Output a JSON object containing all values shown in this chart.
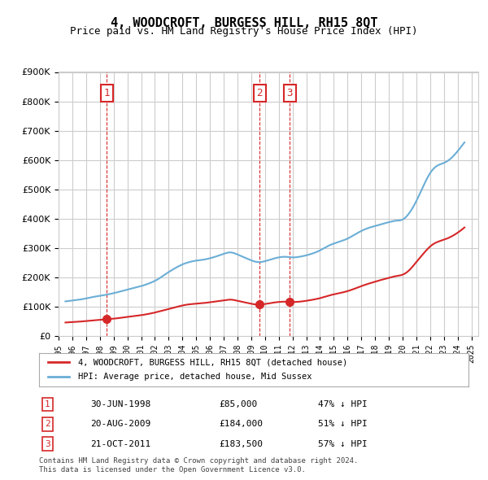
{
  "title": "4, WOODCROFT, BURGESS HILL, RH15 8QT",
  "subtitle": "Price paid vs. HM Land Registry's House Price Index (HPI)",
  "legend_line1": "4, WOODCROFT, BURGESS HILL, RH15 8QT (detached house)",
  "legend_line2": "HPI: Average price, detached house, Mid Sussex",
  "footer1": "Contains HM Land Registry data © Crown copyright and database right 2024.",
  "footer2": "This data is licensed under the Open Government Licence v3.0.",
  "transactions": [
    {
      "num": 1,
      "date": "30-JUN-1998",
      "price": 85000,
      "pct": "47%",
      "x": 1998.5
    },
    {
      "num": 2,
      "date": "20-AUG-2009",
      "price": 184000,
      "pct": "51%",
      "x": 2009.6
    },
    {
      "num": 3,
      "date": "21-OCT-2011",
      "price": 183500,
      "pct": "57%",
      "x": 2011.8
    }
  ],
  "hpi_color": "#6baed6",
  "price_color": "#d62728",
  "vline_color": "#d62728",
  "dot_color": "#d62728",
  "grid_color": "#cccccc",
  "background_color": "#ffffff",
  "ylim": [
    0,
    900000
  ],
  "xlim": [
    1995,
    2025.5
  ],
  "ytick_step": 100000,
  "hpi_data": {
    "years": [
      1995.5,
      1996.0,
      1996.5,
      1997.0,
      1997.5,
      1998.0,
      1998.5,
      1999.0,
      1999.5,
      2000.0,
      2000.5,
      2001.0,
      2001.5,
      2002.0,
      2002.5,
      2003.0,
      2003.5,
      2004.0,
      2004.5,
      2005.0,
      2005.5,
      2006.0,
      2006.5,
      2007.0,
      2007.5,
      2008.0,
      2008.5,
      2009.0,
      2009.5,
      2010.0,
      2010.5,
      2011.0,
      2011.5,
      2012.0,
      2012.5,
      2013.0,
      2013.5,
      2014.0,
      2014.5,
      2015.0,
      2015.5,
      2016.0,
      2016.5,
      2017.0,
      2017.5,
      2018.0,
      2018.5,
      2019.0,
      2019.5,
      2020.0,
      2020.5,
      2021.0,
      2021.5,
      2022.0,
      2022.5,
      2023.0,
      2023.5,
      2024.0,
      2024.5
    ],
    "values": [
      118000,
      121000,
      124000,
      128000,
      133000,
      137000,
      141000,
      146000,
      152000,
      158000,
      164000,
      170000,
      178000,
      188000,
      202000,
      218000,
      232000,
      244000,
      252000,
      257000,
      260000,
      265000,
      272000,
      280000,
      285000,
      278000,
      268000,
      258000,
      252000,
      255000,
      262000,
      268000,
      270000,
      268000,
      270000,
      275000,
      282000,
      292000,
      305000,
      315000,
      323000,
      332000,
      345000,
      358000,
      368000,
      375000,
      382000,
      388000,
      393000,
      397000,
      420000,
      460000,
      510000,
      555000,
      580000,
      590000,
      605000,
      630000,
      660000
    ],
    "smooth": true
  },
  "property_data": {
    "years": [
      1995.5,
      1996.0,
      1996.5,
      1997.0,
      1997.5,
      1998.0,
      1998.5,
      1999.0,
      1999.5,
      2000.0,
      2000.5,
      2001.0,
      2001.5,
      2002.0,
      2002.5,
      2003.0,
      2003.5,
      2004.0,
      2004.5,
      2005.0,
      2005.5,
      2006.0,
      2006.5,
      2007.0,
      2007.5,
      2008.0,
      2008.5,
      2009.0,
      2009.5,
      2010.0,
      2010.5,
      2011.0,
      2011.5,
      2012.0,
      2012.5,
      2013.0,
      2013.5,
      2014.0,
      2014.5,
      2015.0,
      2015.5,
      2016.0,
      2016.5,
      2017.0,
      2017.5,
      2018.0,
      2018.5,
      2019.0,
      2019.5,
      2020.0,
      2020.5,
      2021.0,
      2021.5,
      2022.0,
      2022.5,
      2023.0,
      2023.5,
      2024.0,
      2024.5
    ],
    "values": [
      46000,
      47500,
      49000,
      51000,
      53000,
      55000,
      57000,
      59000,
      62000,
      65000,
      68000,
      71000,
      75000,
      80000,
      86000,
      92000,
      98000,
      104000,
      108000,
      110000,
      112000,
      115000,
      118000,
      121000,
      124000,
      120000,
      115000,
      110000,
      107000,
      109000,
      113000,
      116000,
      117000,
      116000,
      117000,
      120000,
      124000,
      129000,
      136000,
      142000,
      147000,
      153000,
      161000,
      170000,
      178000,
      185000,
      192000,
      198000,
      204000,
      209000,
      225000,
      252000,
      280000,
      305000,
      320000,
      328000,
      338000,
      352000,
      370000
    ]
  }
}
